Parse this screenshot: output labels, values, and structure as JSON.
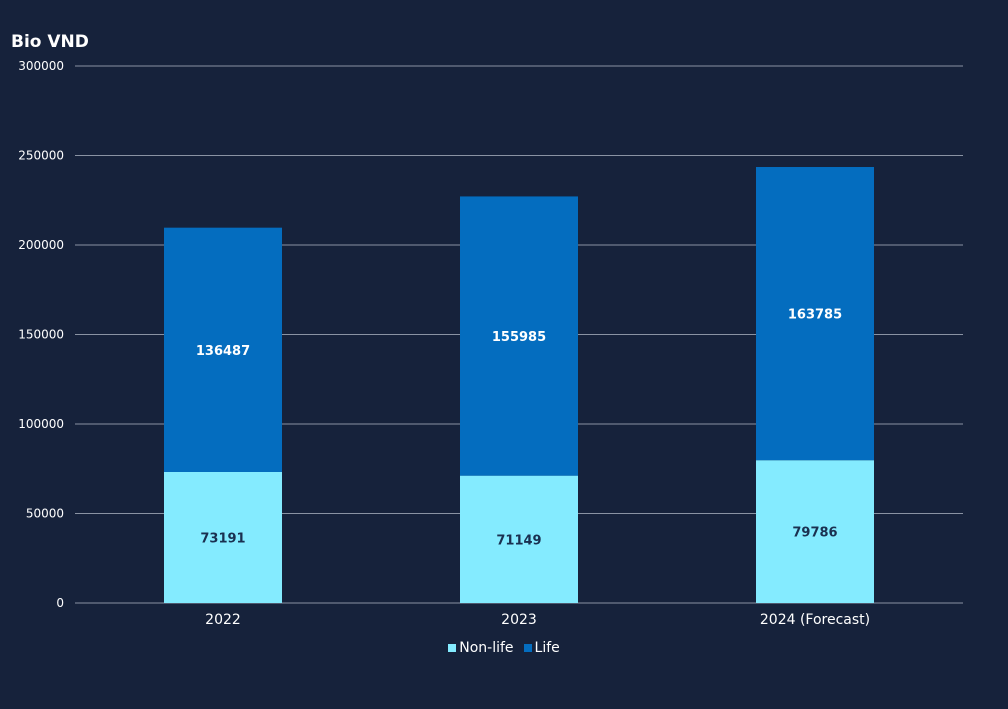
{
  "colors": {
    "background": "#16223b",
    "non_life": "#84ebff",
    "life": "#046dbf",
    "gridline": "#8a93a3",
    "non_life_label": "#1a3050",
    "life_label": "#ffffff",
    "text": "#ffffff"
  },
  "chart_data": {
    "type": "bar",
    "stacked": true,
    "ylabel": "Bio VND",
    "categories": [
      "2022",
      "2023",
      "2024 (Forecast)"
    ],
    "series": [
      {
        "name": "Non-life",
        "values": [
          73191,
          71149,
          79786
        ]
      },
      {
        "name": "Life",
        "values": [
          136487,
          155985,
          163785
        ]
      }
    ],
    "ylim": [
      0,
      300000
    ],
    "yticks": [
      0,
      50000,
      100000,
      150000,
      200000,
      250000,
      300000
    ],
    "ytick_labels": [
      "0",
      "50000",
      "100000",
      "150000",
      "200000",
      "250000",
      "300000"
    ],
    "grid": true,
    "legend_position": "bottom"
  }
}
